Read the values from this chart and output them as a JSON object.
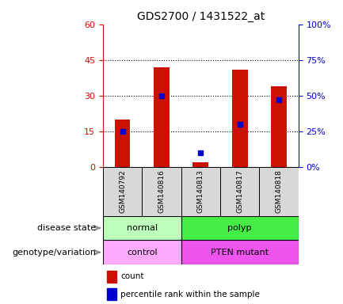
{
  "title": "GDS2700 / 1431522_at",
  "samples": [
    "GSM140792",
    "GSM140816",
    "GSM140813",
    "GSM140817",
    "GSM140818"
  ],
  "counts": [
    20,
    42,
    2,
    41,
    34
  ],
  "percentile_ranks": [
    25,
    50,
    10,
    30,
    47
  ],
  "ylim_left": [
    0,
    60
  ],
  "ylim_right": [
    0,
    100
  ],
  "yticks_left": [
    0,
    15,
    30,
    45,
    60
  ],
  "yticks_right": [
    0,
    25,
    50,
    75,
    100
  ],
  "bar_color": "#cc1100",
  "dot_color": "#0000cc",
  "color_normal": "#bbffbb",
  "color_polyp": "#44ee44",
  "color_control": "#ffaaff",
  "color_pten": "#ee55ee",
  "grid_color": "#000000",
  "bg_color": "#d8d8d8",
  "plot_bg": "#ffffff",
  "left_label_color": "#cc1100",
  "right_label_color": "#0000cc"
}
